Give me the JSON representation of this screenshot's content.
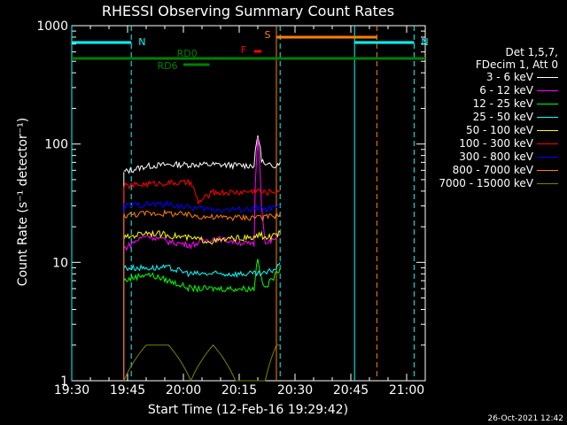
{
  "chart_data": {
    "type": "line",
    "title": "RHESSI Observing Summary Count Rates",
    "xlabel": "Start Time (12-Feb-16 19:29:42)",
    "ylabel": "Count Rate (s⁻¹ detector⁻¹)",
    "x_ticks": [
      "19:30",
      "19:45",
      "20:00",
      "20:15",
      "20:30",
      "20:45",
      "21:00"
    ],
    "y_ticks": [
      "1",
      "10",
      "100",
      "1000"
    ],
    "ylim": [
      1,
      1000
    ],
    "y_scale": "log",
    "xlim_minutes_after_1930": [
      0,
      95
    ],
    "legend_header": [
      "Det 1,5,7,",
      "FDecim 1, Att 0"
    ],
    "series": [
      {
        "name": "3 - 6 keV",
        "color": "#000000",
        "x": [
          "19:44",
          "19:50",
          "19:56",
          "20:02",
          "20:08",
          "20:14",
          "20:19",
          "20:20",
          "20:21",
          "20:22",
          "20:25",
          "20:26"
        ],
        "values": [
          58,
          65,
          67,
          67,
          67,
          66,
          66,
          120,
          75,
          65,
          67,
          70
        ]
      },
      {
        "name": "6 - 12 keV",
        "color": "#ff00ff",
        "x": [
          "19:44",
          "19:50",
          "19:56",
          "20:02",
          "20:08",
          "20:14",
          "20:19",
          "20:20",
          "20:21",
          "20:22",
          "20:25",
          "20:26"
        ],
        "values": [
          13,
          17,
          15,
          14,
          16,
          15,
          14,
          110,
          30,
          14,
          16,
          17
        ]
      },
      {
        "name": "12 - 25 keV",
        "color": "#00ff00",
        "x": [
          "19:44",
          "19:50",
          "19:56",
          "20:02",
          "20:08",
          "20:14",
          "20:19",
          "20:20",
          "20:21",
          "20:22",
          "20:25",
          "20:26"
        ],
        "values": [
          7,
          8,
          7,
          6,
          6,
          6,
          6,
          11,
          7,
          6,
          8,
          9
        ]
      },
      {
        "name": "25 - 50 keV",
        "color": "#00ffff",
        "x": [
          "19:44",
          "19:50",
          "19:56",
          "20:02",
          "20:08",
          "20:14",
          "20:19",
          "20:20",
          "20:21",
          "20:22",
          "20:25",
          "20:26"
        ],
        "values": [
          9,
          9,
          9,
          8,
          8,
          8,
          8,
          8,
          8,
          8,
          9,
          10
        ]
      },
      {
        "name": "50 - 100 keV",
        "color": "#ffff00",
        "x": [
          "19:44",
          "19:50",
          "19:56",
          "20:02",
          "20:08",
          "20:14",
          "20:19",
          "20:20",
          "20:21",
          "20:22",
          "20:25",
          "20:26"
        ],
        "values": [
          16,
          18,
          17,
          16,
          15,
          16,
          16,
          17,
          17,
          16,
          17,
          18
        ]
      },
      {
        "name": "100 - 300 keV",
        "color": "#ff0000",
        "x": [
          "19:44",
          "19:50",
          "19:56",
          "20:02",
          "20:04",
          "20:08",
          "20:14",
          "20:19",
          "20:20",
          "20:21",
          "20:22",
          "20:25",
          "20:26"
        ],
        "values": [
          44,
          46,
          47,
          47,
          32,
          39,
          39,
          40,
          41,
          39,
          39,
          40,
          41
        ]
      },
      {
        "name": "300 - 800 keV",
        "color": "#0000ff",
        "x": [
          "19:44",
          "19:50",
          "19:56",
          "20:02",
          "20:08",
          "20:14",
          "20:19",
          "20:20",
          "20:21",
          "20:22",
          "20:25",
          "20:26"
        ],
        "values": [
          30,
          31,
          31,
          29,
          28,
          28,
          28,
          29,
          28,
          28,
          29,
          30
        ]
      },
      {
        "name": "800 - 7000 keV",
        "color": "#ff8000",
        "x": [
          "19:44",
          "19:50",
          "19:56",
          "20:02",
          "20:08",
          "20:14",
          "20:19",
          "20:20",
          "20:21",
          "20:22",
          "20:25",
          "20:26"
        ],
        "values": [
          25,
          26,
          26,
          25,
          24,
          24,
          24,
          25,
          24,
          24,
          25,
          26
        ]
      },
      {
        "name": "7000 - 15000 keV",
        "color": "#808000",
        "x": [
          "19:44",
          "19:50",
          "19:56",
          "20:02",
          "20:08",
          "20:14",
          "20:19",
          "20:20",
          "20:21",
          "20:22",
          "20:25",
          "20:26"
        ],
        "values": [
          1,
          2,
          2,
          1,
          2,
          1,
          1,
          1,
          1,
          1,
          2,
          2
        ]
      }
    ],
    "annotations": [
      {
        "label": "N",
        "color": "#00ffff",
        "kind": "bar",
        "x_start": "19:30",
        "x_end": "19:46"
      },
      {
        "label": "N",
        "color": "#00ffff",
        "kind": "bar",
        "x_start": "20:46",
        "x_end": "21:02"
      },
      {
        "label": "S",
        "color": "#ff8000",
        "kind": "bar",
        "x_start": "20:25",
        "x_end": "20:52"
      },
      {
        "label": "F",
        "color": "#ff0000",
        "kind": "bar",
        "x_start": "20:19",
        "x_end": "20:21"
      },
      {
        "label": "RD0",
        "color": "#008000",
        "kind": "bar",
        "x_start": "19:30",
        "x_end": "21:05"
      },
      {
        "label": "RD6",
        "color": "#008000",
        "kind": "bar",
        "x_start": "20:00",
        "x_end": "20:07"
      }
    ],
    "vertical_lines": [
      {
        "color": "#00ffff",
        "style": "solid",
        "x": "19:30"
      },
      {
        "color": "#00ffff",
        "style": "dashed",
        "x": "19:46"
      },
      {
        "color": "#ff8000",
        "style": "solid",
        "x": "20:25"
      },
      {
        "color": "#00ffff",
        "style": "dashed",
        "x": "20:26"
      },
      {
        "color": "#00ffff",
        "style": "solid",
        "x": "20:46"
      },
      {
        "color": "#ff8000",
        "style": "dashed",
        "x": "20:52"
      },
      {
        "color": "#00ffff",
        "style": "dashed",
        "x": "21:02"
      }
    ],
    "footer_date": "26-Oct-2021 12:42"
  }
}
